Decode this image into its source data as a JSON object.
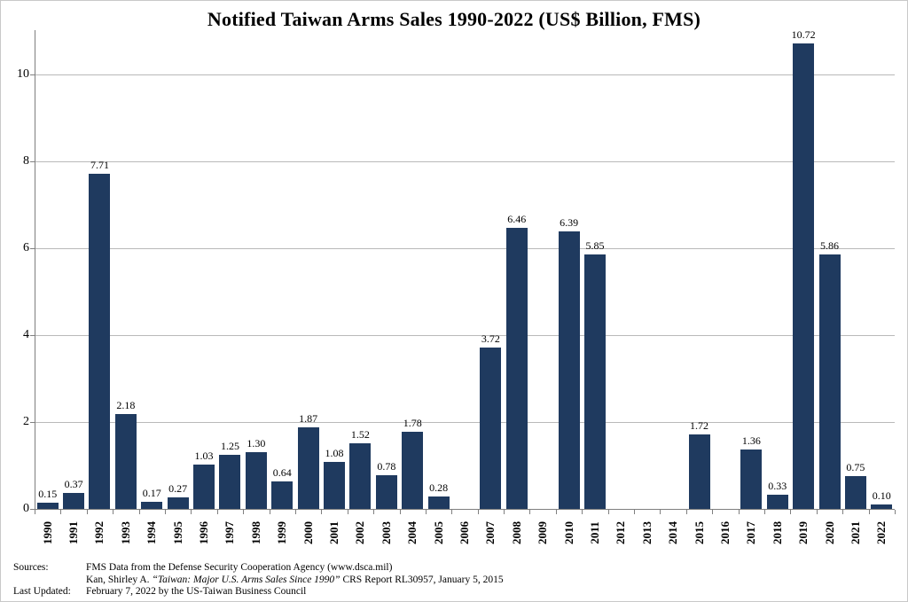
{
  "chart_data": {
    "type": "bar",
    "title": "Notified Taiwan Arms Sales 1990-2022 (US$ Billion, FMS)",
    "categories": [
      "1990",
      "1991",
      "1992",
      "1993",
      "1994",
      "1995",
      "1996",
      "1997",
      "1998",
      "1999",
      "2000",
      "2001",
      "2002",
      "2003",
      "2004",
      "2005",
      "2006",
      "2007",
      "2008",
      "2009",
      "2010",
      "2011",
      "2012",
      "2013",
      "2014",
      "2015",
      "2016",
      "2017",
      "2018",
      "2019",
      "2020",
      "2021",
      "2022"
    ],
    "values": [
      0.15,
      0.37,
      7.71,
      2.18,
      0.17,
      0.27,
      1.03,
      1.25,
      1.3,
      0.64,
      1.87,
      1.08,
      1.52,
      0.78,
      1.78,
      0.28,
      null,
      3.72,
      6.46,
      null,
      6.39,
      5.85,
      null,
      null,
      null,
      1.72,
      null,
      1.36,
      0.33,
      10.72,
      5.86,
      0.75,
      0.1
    ],
    "value_labels": [
      "0.15",
      "0.37",
      "7.71",
      "2.18",
      "0.17",
      "0.27",
      "1.03",
      "1.25",
      "1.30",
      "0.64",
      "1.87",
      "1.08",
      "1.52",
      "0.78",
      "1.78",
      "0.28",
      null,
      "3.72",
      "6.46",
      null,
      "6.39",
      "5.85",
      null,
      null,
      null,
      "1.72",
      null,
      "1.36",
      "0.33",
      "10.72",
      "5.86",
      "0.75",
      "0.10"
    ],
    "xlabel": "",
    "ylabel": "",
    "ylim": [
      0,
      11
    ],
    "yticks": [
      0,
      2,
      4,
      6,
      8,
      10
    ],
    "ytick_labels": [
      "0",
      "2",
      "4",
      "6",
      "8",
      "10"
    ],
    "grid": true,
    "legend": "none"
  },
  "colors": {
    "bar": "#1f3a5f",
    "grid": "#b9b9b9",
    "axis": "#7f7f7f",
    "text": "#000000",
    "border": "#c9c9c9"
  },
  "footer": {
    "sources_label": "Sources:",
    "source_line1": "FMS Data from the Defense Security Cooperation Agency (www.dsca.mil)",
    "source_line2_prefix": "Kan, Shirley A. ",
    "source_line2_italic": "“Taiwan: Major U.S. Arms Sales Since 1990”",
    "source_line2_suffix": " CRS Report RL30957, January 5, 2015",
    "last_updated_label": "Last Updated:",
    "last_updated_value": "February 7, 2022 by the US-Taiwan Business Council"
  }
}
